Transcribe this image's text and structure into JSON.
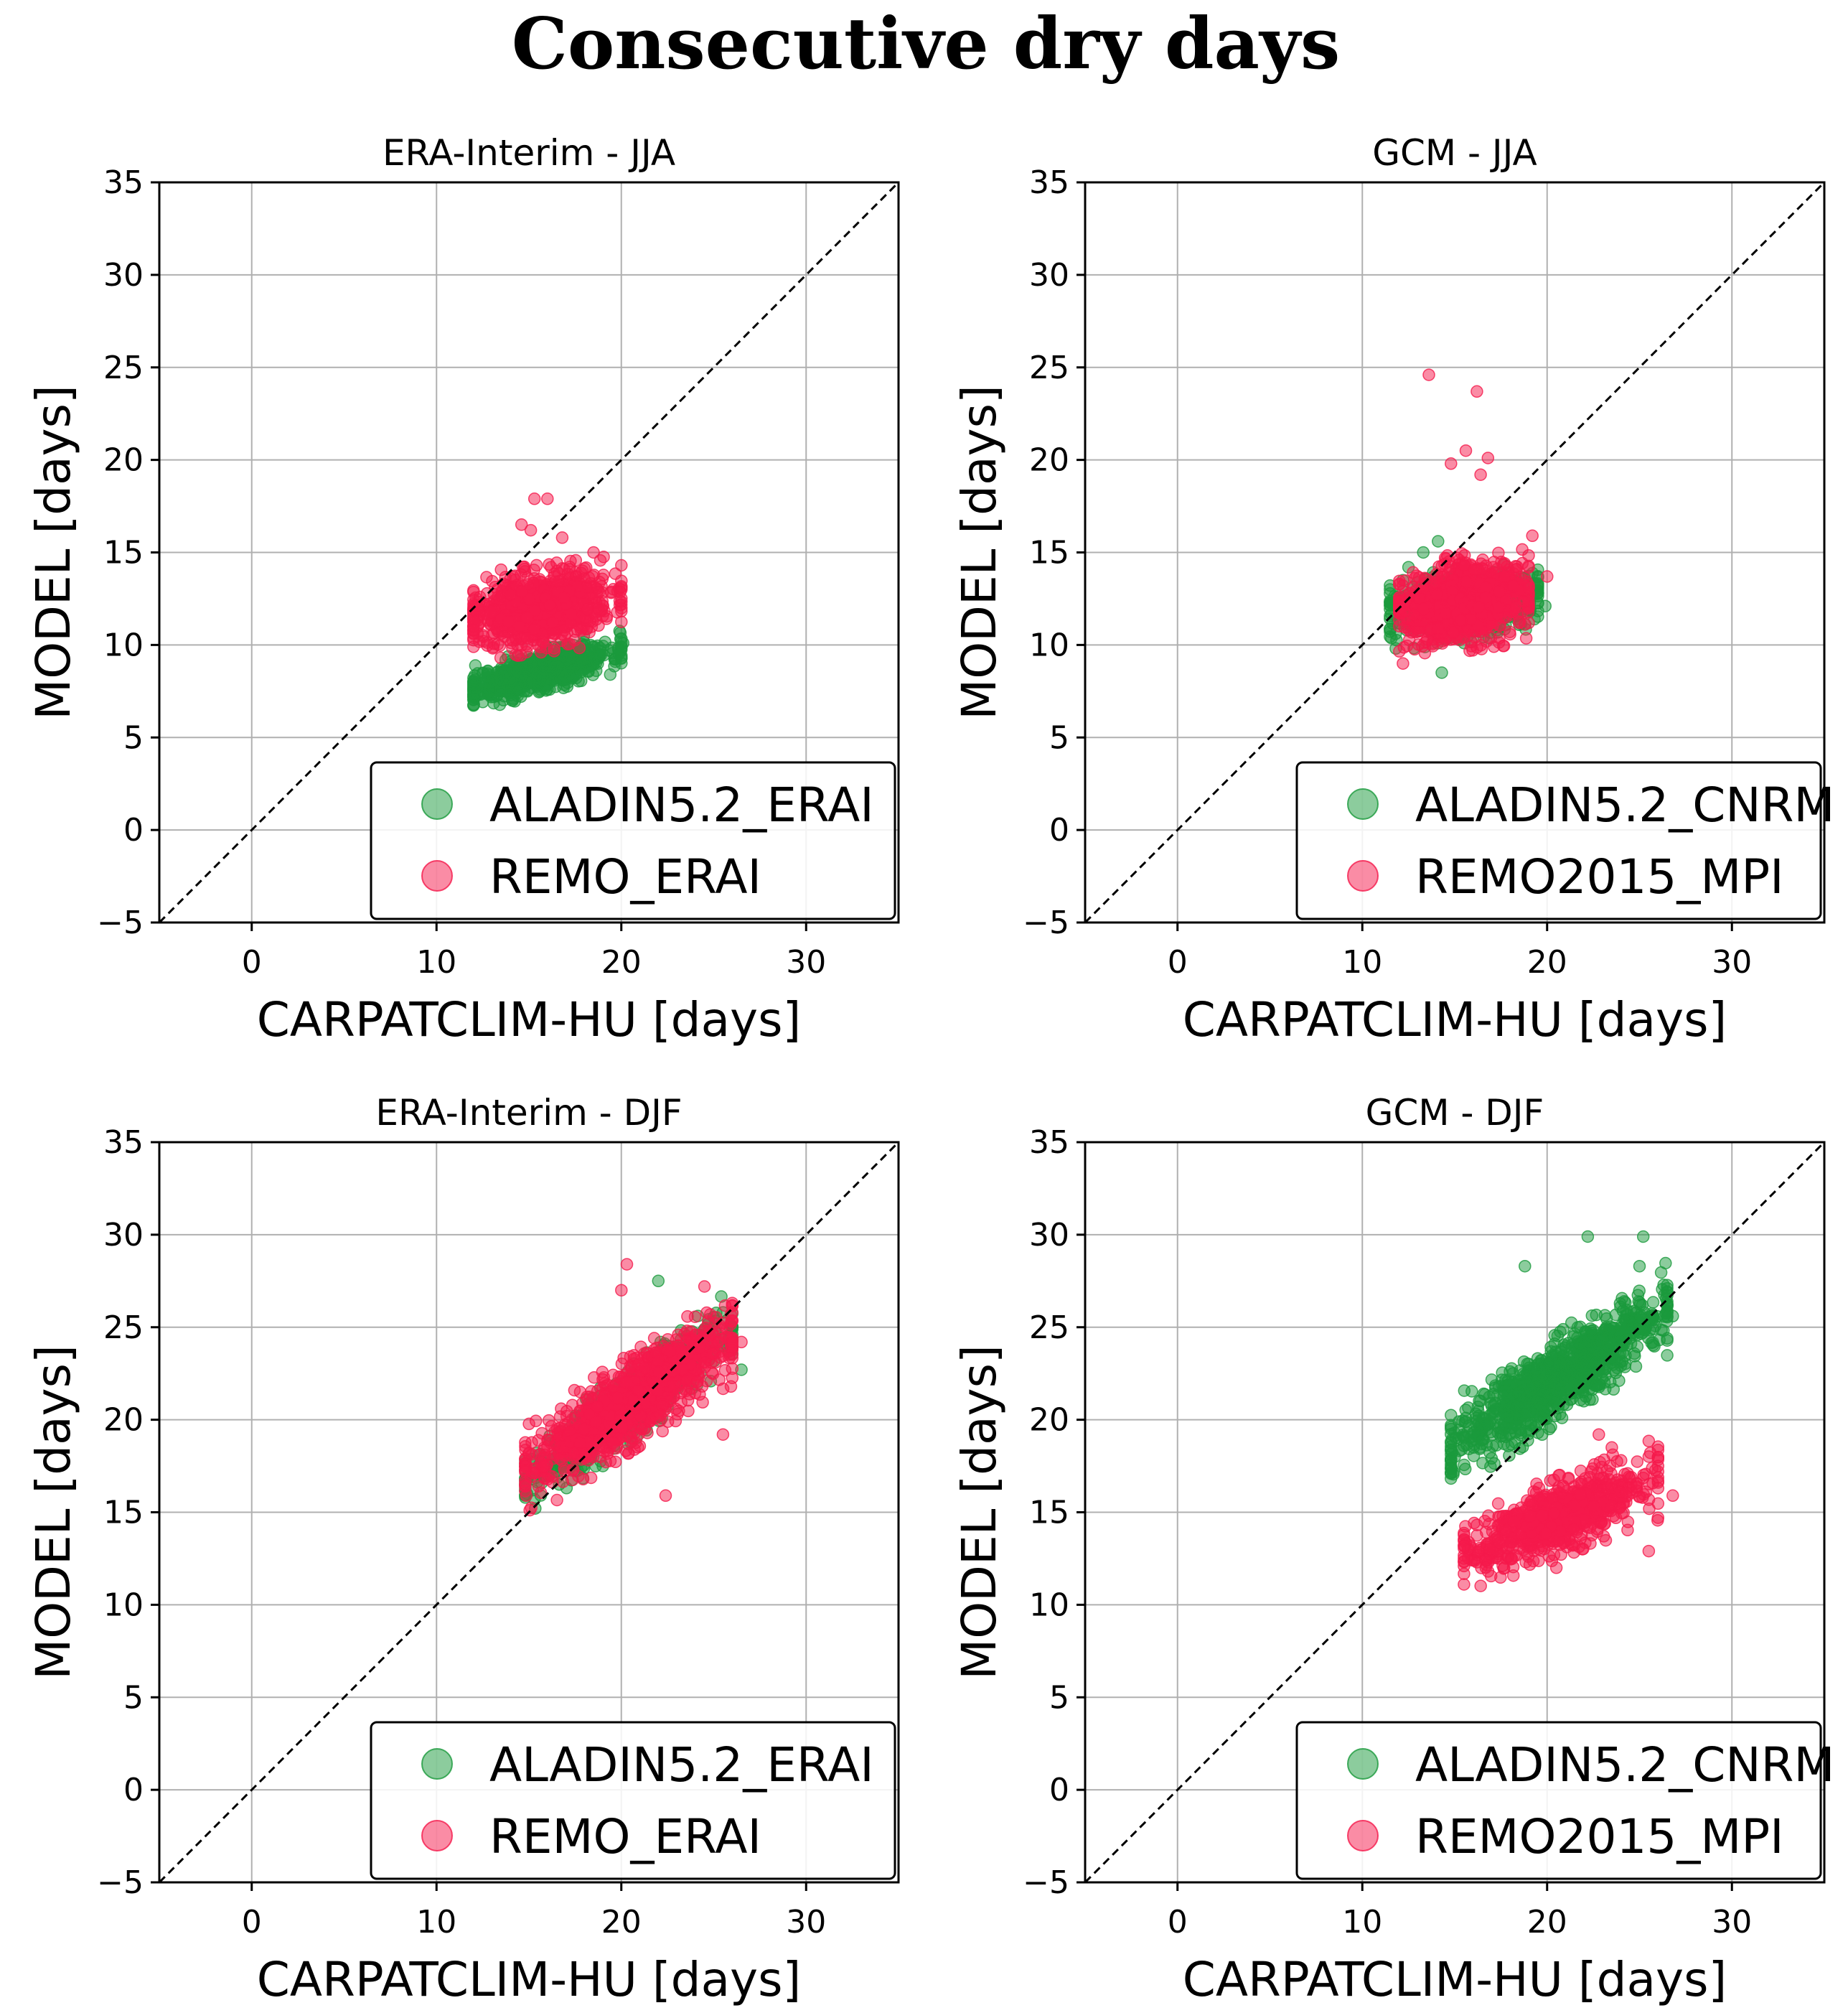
{
  "figure_title": "Consecutive dry days",
  "colors": {
    "green": "#1a9a3c",
    "red": "#f5194b",
    "grid": "#b0b0b0",
    "diagonal": "#000000"
  },
  "chart_data": [
    {
      "type": "scatter",
      "title": "ERA-Interim - JJA",
      "xlabel": "CARPATCLIM-HU [days]",
      "ylabel": "MODEL [days]",
      "xlim": [
        -5,
        35
      ],
      "ylim": [
        -5,
        35
      ],
      "xticks": [
        0,
        10,
        20,
        30
      ],
      "yticks": [
        -5,
        0,
        5,
        10,
        15,
        20,
        25,
        30,
        35
      ],
      "xtick_labels": [
        "0",
        "10",
        "20",
        "30"
      ],
      "ytick_labels": [
        "−5",
        "0",
        "5",
        "10",
        "15",
        "20",
        "25",
        "30",
        "35"
      ],
      "grid": true,
      "reference_line": "1:1 dashed",
      "legend_position": "lower-right",
      "series": [
        {
          "name": "ALADIN5.2_ERAI",
          "color": "#1a9a3c",
          "cloud": {
            "x_range": [
              12,
              20
            ],
            "x_mean": 15.5,
            "y_at_xmin": 7.6,
            "y_at_xmax": 9.8,
            "y_spread": 0.9,
            "n": 700,
            "seed": 11
          },
          "points": [
            [
              12.2,
              7.3
            ],
            [
              14.1,
              7.0
            ],
            [
              16.0,
              7.6
            ],
            [
              18.2,
              8.6
            ],
            [
              19.4,
              8.4
            ],
            [
              20.1,
              10.1
            ],
            [
              17.0,
              10.0
            ]
          ]
        },
        {
          "name": "REMO_ERAI",
          "color": "#f5194b",
          "cloud": {
            "x_range": [
              12,
              20
            ],
            "x_mean": 15.5,
            "y_at_xmin": 11.5,
            "y_at_xmax": 12.5,
            "y_spread": 1.7,
            "n": 900,
            "seed": 23
          },
          "points": [
            [
              15.3,
              17.9
            ],
            [
              16.0,
              17.9
            ],
            [
              14.6,
              16.5
            ],
            [
              15.1,
              16.2
            ],
            [
              16.8,
              15.8
            ],
            [
              20.0,
              14.3
            ],
            [
              18.5,
              15.0
            ],
            [
              12.2,
              12.1
            ]
          ]
        }
      ]
    },
    {
      "type": "scatter",
      "title": "GCM - JJA",
      "xlabel": "CARPATCLIM-HU [days]",
      "ylabel": "MODEL [days]",
      "xlim": [
        -5,
        35
      ],
      "ylim": [
        -5,
        35
      ],
      "xticks": [
        0,
        10,
        20,
        30
      ],
      "yticks": [
        -5,
        0,
        5,
        10,
        15,
        20,
        25,
        30,
        35
      ],
      "xtick_labels": [
        "0",
        "10",
        "20",
        "30"
      ],
      "ytick_labels": [
        "−5",
        "0",
        "5",
        "10",
        "15",
        "20",
        "25",
        "30",
        "35"
      ],
      "grid": true,
      "reference_line": "1:1 dashed",
      "legend_position": "lower-right",
      "series": [
        {
          "name": "ALADIN5.2_CNRM",
          "color": "#1a9a3c",
          "cloud": {
            "x_range": [
              11.5,
              19.5
            ],
            "x_mean": 15.5,
            "y_at_xmin": 11.8,
            "y_at_xmax": 12.6,
            "y_spread": 1.5,
            "n": 700,
            "seed": 37
          },
          "points": [
            [
              12.2,
              13.5
            ],
            [
              12.5,
              14.2
            ],
            [
              13.3,
              15.0
            ],
            [
              14.1,
              15.6
            ],
            [
              19.9,
              12.1
            ],
            [
              14.3,
              8.5
            ],
            [
              11.8,
              10.6
            ]
          ]
        },
        {
          "name": "REMO2015_MPI",
          "color": "#f5194b",
          "cloud": {
            "x_range": [
              12,
              19
            ],
            "x_mean": 15.5,
            "y_at_xmin": 11.8,
            "y_at_xmax": 12.8,
            "y_spread": 1.9,
            "n": 950,
            "seed": 41
          },
          "points": [
            [
              13.6,
              24.6
            ],
            [
              16.2,
              23.7
            ],
            [
              15.6,
              20.5
            ],
            [
              16.8,
              20.1
            ],
            [
              14.8,
              19.8
            ],
            [
              16.4,
              19.2
            ],
            [
              19.2,
              15.9
            ],
            [
              20.0,
              13.7
            ],
            [
              12.2,
              9.0
            ]
          ]
        }
      ]
    },
    {
      "type": "scatter",
      "title": "ERA-Interim - DJF",
      "xlabel": "CARPATCLIM-HU [days]",
      "ylabel": "MODEL [days]",
      "xlim": [
        -5,
        35
      ],
      "ylim": [
        -5,
        35
      ],
      "xticks": [
        0,
        10,
        20,
        30
      ],
      "yticks": [
        -5,
        0,
        5,
        10,
        15,
        20,
        25,
        30,
        35
      ],
      "xtick_labels": [
        "0",
        "10",
        "20",
        "30"
      ],
      "ytick_labels": [
        "−5",
        "0",
        "5",
        "10",
        "15",
        "20",
        "25",
        "30",
        "35"
      ],
      "grid": true,
      "reference_line": "1:1 dashed",
      "legend_position": "lower-right",
      "series": [
        {
          "name": "ALADIN5.2_ERAI",
          "color": "#1a9a3c",
          "cloud": {
            "x_range": [
              14.8,
              26
            ],
            "x_mean": 20.5,
            "y_at_xmin": 16.6,
            "y_at_xmax": 25.0,
            "y_spread": 1.5,
            "n": 800,
            "seed": 53
          },
          "points": [
            [
              14.9,
              16.0
            ],
            [
              15.3,
              15.7
            ],
            [
              22.0,
              27.5
            ],
            [
              25.5,
              25.8
            ],
            [
              26.5,
              22.7
            ],
            [
              19.0,
              17.5
            ]
          ]
        },
        {
          "name": "REMO_ERAI",
          "color": "#f5194b",
          "cloud": {
            "x_range": [
              14.8,
              26
            ],
            "x_mean": 20.5,
            "y_at_xmin": 17.2,
            "y_at_xmax": 24.5,
            "y_spread": 1.9,
            "n": 1000,
            "seed": 67
          },
          "points": [
            [
              20.3,
              28.4
            ],
            [
              22.4,
              15.9
            ],
            [
              25.5,
              19.2
            ],
            [
              26.5,
              24.2
            ],
            [
              20.0,
              27.0
            ],
            [
              15.0,
              18.2
            ],
            [
              24.5,
              27.2
            ]
          ]
        }
      ]
    },
    {
      "type": "scatter",
      "title": "GCM - DJF",
      "xlabel": "CARPATCLIM-HU [days]",
      "ylabel": "MODEL [days]",
      "xlim": [
        -5,
        35
      ],
      "ylim": [
        -5,
        35
      ],
      "xticks": [
        0,
        10,
        20,
        30
      ],
      "yticks": [
        -5,
        0,
        5,
        10,
        15,
        20,
        25,
        30,
        35
      ],
      "xtick_labels": [
        "0",
        "10",
        "20",
        "30"
      ],
      "ytick_labels": [
        "−5",
        "0",
        "5",
        "10",
        "15",
        "20",
        "25",
        "30",
        "35"
      ],
      "grid": true,
      "reference_line": "1:1 dashed",
      "legend_position": "lower-right",
      "series": [
        {
          "name": "ALADIN5.2_CNRM",
          "color": "#1a9a3c",
          "cloud": {
            "x_range": [
              14.8,
              26.5
            ],
            "x_mean": 20.5,
            "y_at_xmin": 18.6,
            "y_at_xmax": 26.0,
            "y_spread": 1.8,
            "n": 1000,
            "seed": 79
          },
          "points": [
            [
              22.2,
              29.9
            ],
            [
              25.2,
              29.9
            ],
            [
              18.8,
              28.3
            ],
            [
              26.8,
              25.6
            ],
            [
              25.0,
              28.3
            ],
            [
              15.0,
              18.0
            ],
            [
              16.0,
              19.3
            ]
          ]
        },
        {
          "name": "REMO2015_MPI",
          "color": "#f5194b",
          "cloud": {
            "x_range": [
              15.5,
              26
            ],
            "x_mean": 20.5,
            "y_at_xmin": 12.8,
            "y_at_xmax": 16.8,
            "y_spread": 1.6,
            "n": 850,
            "seed": 97
          },
          "points": [
            [
              15.5,
              12.5
            ],
            [
              16.2,
              12.3
            ],
            [
              25.5,
              12.9
            ],
            [
              26.8,
              15.9
            ],
            [
              23.5,
              18.5
            ],
            [
              22.8,
              19.2
            ],
            [
              24.0,
              17.8
            ],
            [
              20.5,
              12.0
            ]
          ]
        }
      ]
    }
  ]
}
